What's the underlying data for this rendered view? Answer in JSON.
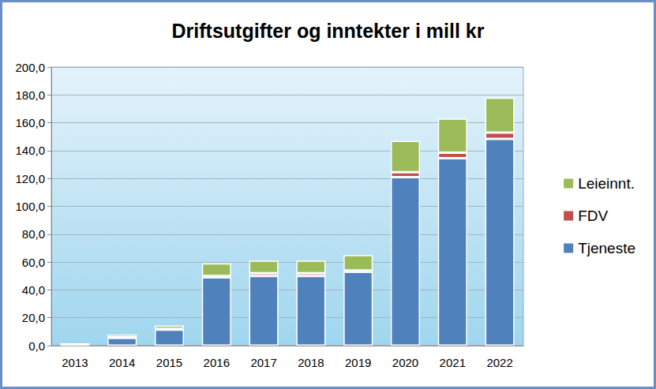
{
  "chart_data": {
    "type": "bar",
    "title": "Driftsutgifter og inntekter i mill kr",
    "categories": [
      "2013",
      "2014",
      "2015",
      "2016",
      "2017",
      "2018",
      "2019",
      "2020",
      "2021",
      "2022"
    ],
    "series": [
      {
        "name": "Tjeneste",
        "color": "#4f81bd",
        "values": [
          0.5,
          5.5,
          11.5,
          49,
          50,
          50,
          53,
          121,
          134.5,
          148.5
        ]
      },
      {
        "name": "FDV",
        "color": "#c0504d",
        "values": [
          0.2,
          0.5,
          0.5,
          1,
          2,
          2,
          1,
          3.5,
          4,
          4.5
        ]
      },
      {
        "name": "Leieinnt.",
        "color": "#9bbb59",
        "values": [
          1,
          2,
          2.5,
          9,
          9,
          9,
          11,
          22.5,
          24.5,
          25
        ]
      }
    ],
    "ylim": [
      0,
      200
    ],
    "yticks": [
      {
        "value": 0,
        "label": "0,0"
      },
      {
        "value": 20,
        "label": "20,0"
      },
      {
        "value": 40,
        "label": "40,0"
      },
      {
        "value": 60,
        "label": "60,0"
      },
      {
        "value": 80,
        "label": "80,0"
      },
      {
        "value": 100,
        "label": "100,0"
      },
      {
        "value": 120,
        "label": "120,0"
      },
      {
        "value": 140,
        "label": "140,0"
      },
      {
        "value": 160,
        "label": "160,0"
      },
      {
        "value": 180,
        "label": "180,0"
      },
      {
        "value": 200,
        "label": "200,0"
      }
    ],
    "stacked": true,
    "grid": true,
    "legend": "right"
  }
}
